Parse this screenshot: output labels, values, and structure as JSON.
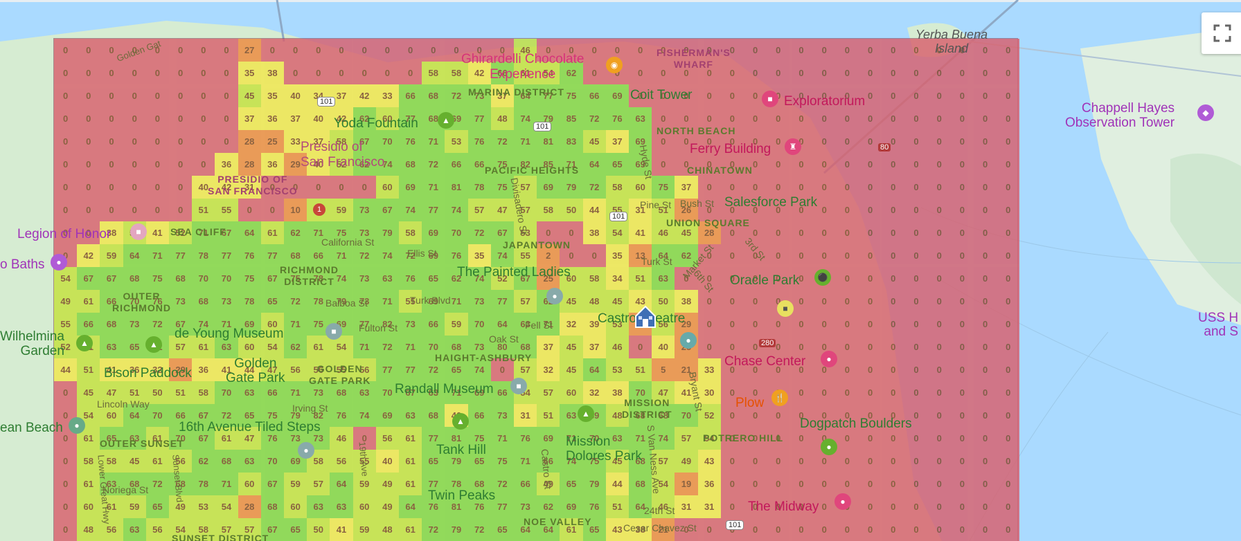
{
  "map": {
    "controls": {
      "fullscreen_icon": "fullscreen-icon"
    },
    "marker_icon": "house-marker-icon",
    "colors": {
      "red": "#d9606d",
      "orange": "#ee8a3e",
      "yellow": "#f2e64d",
      "lime": "#c4e23e",
      "green": "#83d641",
      "water": "#aadaff",
      "land": "#d6ecd2",
      "label": "#7a4422"
    }
  },
  "places": {
    "yerba_buena": "Yerba Buena\nIsland",
    "fishermans_wharf": "FISHERMAN'S\nWHARF",
    "ghirardelli": "Ghirardelli Chocolate\nExperience",
    "marina": "MARINA DISTRICT",
    "coit": "Coit Tower",
    "exploratorium": "Exploratorium",
    "chappell": "Chappell Hayes\nObservation Tower",
    "yoda": "Yoda Fountain",
    "presidio_sf": "Presidio of\nSan Francisco",
    "presidio_upper": "PRESIDIO OF\nSAN FRANCISCO",
    "north_beach": "NORTH BEACH",
    "ferry": "Ferry Building",
    "pacific_heights": "PACIFIC HEIGHTS",
    "chinatown": "CHINATOWN",
    "salesforce": "Salesforce Park",
    "union_square": "UNION SQUARE",
    "legion": "Legion of Honor",
    "sea_cliff": "SEA CLIFF",
    "baths": "o Baths",
    "japantown": "JAPANTOWN",
    "california_st": "California St",
    "richmond": "RICHMOND\nDISTRICT",
    "painted_ladies": "The Painted Ladies",
    "oracle": "Oracle Park",
    "outer_richmond": "OUTER\nRICHMOND",
    "balboa": "Balboa St",
    "castro_theatre": "Castro Theatre",
    "wilhelm": "Wilhelmina\nGarden",
    "de_young": "de Young Museum",
    "fulton": "Fulton St",
    "fell": "Fell St",
    "oak": "Oak St",
    "haight": "HAIGHT-ASHBURY",
    "chase": "Chase Center",
    "ussh": "USS H\nand S",
    "bison": "Bison Paddock",
    "golden_gate_park": "Golden\nGate Park",
    "golden_gate_park_d": "GOLDEN\nGATE PARK",
    "randall": "Randall Museum",
    "mission": "MISSION\nDISTRICT",
    "plow": "Plow",
    "dogpatch": "Dogpatch Boulders",
    "lincoln": "Lincoln Way",
    "irving": "Irving St",
    "ocean_beach": "ean Beach",
    "tiled_steps": "16th Avenue Tiled Steps",
    "outer_sunset": "OUTER SUNSET",
    "tank_hill": "Tank Hill",
    "mission_dolores": "Mission\nDolores Park",
    "potrero": "POTRERO HILL",
    "noriega": "Noriega St",
    "twin_peaks": "Twin Peaks",
    "midway": "The Midway",
    "noe_valley": "NOE VALLEY",
    "cesar": "Cesar Chavez St",
    "sunset_district": "SUNSET DISTRICT",
    "24th": "24th St",
    "golden_gate": "Golden Gat",
    "turk": "Turk St",
    "market": "Market St",
    "sixth": "6th St",
    "third": "3rd St",
    "hyde": "Hyde St",
    "divisadero": "Divisadero St",
    "pine": "Pine St",
    "bush": "Bush St",
    "ellis": "Ellis St",
    "turk_blvd": "Turk Blvd",
    "castro_st": "Castro St",
    "south_van_ness": "S Van Ness Ave",
    "bryant": "Bryant St",
    "sunset_blvd": "Sunset Blvd",
    "19th_ave": "19th Ave",
    "lower_great": "Lower Great Hwy",
    "r101a": "101",
    "r101b": "101",
    "r101c": "101",
    "r101d": "101",
    "r1": "1",
    "r80": "80",
    "r280": "280"
  },
  "grid_values": [
    [
      "0",
      "0",
      "0",
      "0",
      "0",
      "0",
      "0",
      "0",
      "27",
      "0",
      "0",
      "0",
      "0",
      "0",
      "0",
      "0",
      "0",
      "0",
      "0",
      "0",
      "46",
      "0",
      "0",
      "0",
      "0",
      "0",
      "0",
      "0",
      "0",
      "0",
      "0",
      "0",
      "0",
      "0",
      "0",
      "0",
      "0",
      "0",
      "0",
      "0",
      "0",
      "0"
    ],
    [
      "0",
      "0",
      "0",
      "0",
      "0",
      "0",
      "0",
      "0",
      "35",
      "38",
      "0",
      "0",
      "0",
      "0",
      "0",
      "0",
      "58",
      "58",
      "42",
      "66",
      "61",
      "54",
      "62",
      "0",
      "0",
      "0",
      "0",
      "0",
      "0",
      "0",
      "0",
      "0",
      "0",
      "0",
      "0",
      "0",
      "0",
      "0",
      "0",
      "0",
      "0",
      "0"
    ],
    [
      "0",
      "0",
      "0",
      "0",
      "0",
      "0",
      "0",
      "0",
      "45",
      "35",
      "40",
      "34",
      "37",
      "42",
      "33",
      "66",
      "68",
      "72",
      "73",
      "37",
      "64",
      "77",
      "75",
      "66",
      "69",
      "0",
      "0",
      "0",
      "0",
      "0",
      "0",
      "0",
      "0",
      "0",
      "0",
      "0",
      "0",
      "0",
      "0",
      "0",
      "0",
      "0"
    ],
    [
      "0",
      "0",
      "0",
      "0",
      "0",
      "0",
      "0",
      "0",
      "37",
      "36",
      "37",
      "40",
      "42",
      "62",
      "60",
      "77",
      "68",
      "69",
      "77",
      "48",
      "74",
      "79",
      "85",
      "72",
      "76",
      "63",
      "0",
      "0",
      "0",
      "0",
      "0",
      "0",
      "0",
      "0",
      "0",
      "0",
      "0",
      "0",
      "0",
      "0",
      "0",
      "0"
    ],
    [
      "0",
      "0",
      "0",
      "0",
      "0",
      "0",
      "0",
      "0",
      "28",
      "25",
      "33",
      "37",
      "58",
      "67",
      "70",
      "76",
      "71",
      "53",
      "76",
      "72",
      "71",
      "81",
      "83",
      "45",
      "37",
      "69",
      "0",
      "0",
      "0",
      "0",
      "0",
      "0",
      "0",
      "0",
      "0",
      "0",
      "0",
      "0",
      "0",
      "0",
      "0",
      "0"
    ],
    [
      "0",
      "0",
      "0",
      "0",
      "0",
      "0",
      "0",
      "36",
      "28",
      "36",
      "29",
      "40",
      "52",
      "62",
      "74",
      "68",
      "72",
      "66",
      "66",
      "75",
      "82",
      "85",
      "71",
      "64",
      "65",
      "69",
      "0",
      "0",
      "0",
      "0",
      "0",
      "0",
      "0",
      "0",
      "0",
      "0",
      "0",
      "0",
      "0",
      "0",
      "0",
      "0"
    ],
    [
      "0",
      "0",
      "0",
      "0",
      "0",
      "0",
      "40",
      "42",
      "31",
      "0",
      "0",
      "0",
      "0",
      "0",
      "60",
      "69",
      "71",
      "81",
      "78",
      "75",
      "57",
      "69",
      "79",
      "72",
      "58",
      "60",
      "75",
      "37",
      "0",
      "0",
      "0",
      "0",
      "0",
      "0",
      "0",
      "0",
      "0",
      "0",
      "0",
      "0",
      "0",
      "0"
    ],
    [
      "0",
      "0",
      "0",
      "0",
      "0",
      "0",
      "51",
      "55",
      "0",
      "0",
      "10",
      "50",
      "59",
      "73",
      "67",
      "74",
      "77",
      "74",
      "57",
      "47",
      "57",
      "58",
      "50",
      "44",
      "55",
      "31",
      "51",
      "26",
      "0",
      "0",
      "0",
      "0",
      "0",
      "0",
      "0",
      "0",
      "0",
      "0",
      "0",
      "0",
      "0",
      "0"
    ],
    [
      "0",
      "0",
      "38",
      "54",
      "41",
      "52",
      "71",
      "67",
      "64",
      "61",
      "62",
      "71",
      "75",
      "73",
      "79",
      "58",
      "69",
      "70",
      "72",
      "67",
      "53",
      "0",
      "0",
      "38",
      "54",
      "41",
      "46",
      "45",
      "28",
      "0",
      "0",
      "0",
      "0",
      "0",
      "0",
      "0",
      "0",
      "0",
      "0",
      "0",
      "0",
      "0"
    ],
    [
      "0",
      "42",
      "59",
      "64",
      "71",
      "77",
      "78",
      "77",
      "76",
      "77",
      "68",
      "66",
      "71",
      "72",
      "74",
      "72",
      "69",
      "76",
      "35",
      "74",
      "55",
      "2",
      "0",
      "0",
      "35",
      "13",
      "64",
      "62",
      "0",
      "0",
      "0",
      "0",
      "0",
      "0",
      "0",
      "0",
      "0",
      "0",
      "0",
      "0",
      "0",
      "0"
    ],
    [
      "54",
      "67",
      "67",
      "68",
      "75",
      "68",
      "70",
      "70",
      "75",
      "67",
      "75",
      "78",
      "74",
      "73",
      "63",
      "76",
      "65",
      "62",
      "74",
      "52",
      "67",
      "25",
      "60",
      "58",
      "34",
      "51",
      "63",
      "0",
      "0",
      "0",
      "0",
      "0",
      "0",
      "0",
      "0",
      "0",
      "0",
      "0",
      "0",
      "0",
      "0",
      "0"
    ],
    [
      "49",
      "61",
      "66",
      "70",
      "76",
      "73",
      "68",
      "73",
      "78",
      "65",
      "72",
      "78",
      "79",
      "73",
      "71",
      "55",
      "69",
      "71",
      "73",
      "77",
      "57",
      "62",
      "45",
      "48",
      "45",
      "43",
      "50",
      "38",
      "0",
      "0",
      "0",
      "0",
      "0",
      "0",
      "0",
      "0",
      "0",
      "0",
      "0",
      "0",
      "0",
      "0"
    ],
    [
      "55",
      "66",
      "68",
      "73",
      "72",
      "67",
      "74",
      "71",
      "69",
      "60",
      "71",
      "75",
      "69",
      "77",
      "82",
      "73",
      "66",
      "59",
      "70",
      "64",
      "63",
      "71",
      "32",
      "39",
      "53",
      "19",
      "56",
      "29",
      "0",
      "0",
      "0",
      "0",
      "0",
      "0",
      "0",
      "0",
      "0",
      "0",
      "0",
      "0",
      "0",
      "0"
    ],
    [
      "52",
      "61",
      "63",
      "65",
      "62",
      "57",
      "61",
      "63",
      "60",
      "54",
      "62",
      "61",
      "54",
      "71",
      "72",
      "71",
      "70",
      "68",
      "73",
      "80",
      "68",
      "37",
      "45",
      "37",
      "46",
      "0",
      "40",
      "25",
      "0",
      "0",
      "0",
      "0",
      "0",
      "0",
      "0",
      "0",
      "0",
      "0",
      "0",
      "0",
      "0",
      "0"
    ],
    [
      "44",
      "51",
      "41",
      "36",
      "32",
      "29",
      "36",
      "41",
      "44",
      "47",
      "56",
      "56",
      "55",
      "56",
      "77",
      "77",
      "72",
      "65",
      "74",
      "0",
      "57",
      "32",
      "45",
      "64",
      "53",
      "51",
      "5",
      "21",
      "33",
      "0",
      "0",
      "0",
      "0",
      "0",
      "0",
      "0",
      "0",
      "0",
      "0",
      "0",
      "0",
      "0"
    ],
    [
      "0",
      "45",
      "47",
      "51",
      "50",
      "51",
      "58",
      "70",
      "63",
      "66",
      "71",
      "73",
      "68",
      "63",
      "70",
      "67",
      "63",
      "71",
      "69",
      "66",
      "54",
      "57",
      "60",
      "32",
      "38",
      "70",
      "47",
      "41",
      "30",
      "0",
      "0",
      "0",
      "0",
      "0",
      "0",
      "0",
      "0",
      "0",
      "0",
      "0",
      "0",
      "0"
    ],
    [
      "0",
      "54",
      "60",
      "64",
      "70",
      "66",
      "67",
      "72",
      "65",
      "75",
      "79",
      "82",
      "76",
      "74",
      "69",
      "63",
      "68",
      "40",
      "66",
      "73",
      "31",
      "51",
      "63",
      "69",
      "48",
      "68",
      "68",
      "70",
      "52",
      "0",
      "0",
      "0",
      "0",
      "0",
      "0",
      "0",
      "0",
      "0",
      "0",
      "0",
      "0",
      "0"
    ],
    [
      "0",
      "61",
      "65",
      "63",
      "61",
      "70",
      "67",
      "61",
      "47",
      "76",
      "73",
      "73",
      "46",
      "0",
      "56",
      "61",
      "77",
      "81",
      "75",
      "71",
      "76",
      "69",
      "71",
      "70",
      "63",
      "71",
      "74",
      "57",
      "54",
      "0",
      "0",
      "0",
      "0",
      "0",
      "0",
      "0",
      "0",
      "0",
      "0",
      "0",
      "0",
      "0"
    ],
    [
      "0",
      "58",
      "58",
      "45",
      "61",
      "56",
      "62",
      "68",
      "63",
      "70",
      "69",
      "58",
      "56",
      "55",
      "40",
      "61",
      "65",
      "79",
      "65",
      "75",
      "71",
      "66",
      "74",
      "75",
      "45",
      "68",
      "57",
      "49",
      "43",
      "0",
      "0",
      "0",
      "0",
      "0",
      "0",
      "0",
      "0",
      "0",
      "0",
      "0",
      "0",
      "0"
    ],
    [
      "0",
      "61",
      "63",
      "68",
      "72",
      "68",
      "78",
      "71",
      "60",
      "67",
      "59",
      "57",
      "64",
      "59",
      "49",
      "61",
      "77",
      "78",
      "68",
      "72",
      "66",
      "49",
      "65",
      "79",
      "44",
      "68",
      "54",
      "19",
      "36",
      "0",
      "0",
      "0",
      "0",
      "0",
      "0",
      "0",
      "0",
      "0",
      "0",
      "0",
      "0",
      "0"
    ],
    [
      "0",
      "60",
      "61",
      "59",
      "65",
      "49",
      "53",
      "54",
      "28",
      "68",
      "60",
      "63",
      "63",
      "60",
      "49",
      "64",
      "76",
      "81",
      "76",
      "77",
      "73",
      "62",
      "69",
      "76",
      "51",
      "64",
      "46",
      "31",
      "31",
      "0",
      "0",
      "0",
      "0",
      "0",
      "0",
      "0",
      "0",
      "0",
      "0",
      "0",
      "0",
      "0"
    ],
    [
      "0",
      "48",
      "56",
      "63",
      "56",
      "54",
      "58",
      "57",
      "57",
      "67",
      "65",
      "50",
      "41",
      "59",
      "48",
      "61",
      "72",
      "79",
      "72",
      "65",
      "64",
      "64",
      "61",
      "65",
      "43",
      "38",
      "21",
      "0",
      "0",
      "0",
      "0",
      "0",
      "0",
      "0",
      "0",
      "0",
      "0",
      "0",
      "0",
      "0",
      "0",
      "0"
    ]
  ]
}
